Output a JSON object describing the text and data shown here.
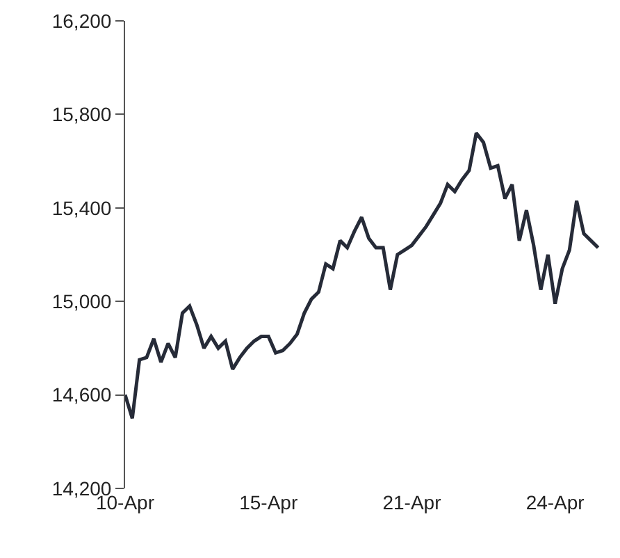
{
  "chart_data": {
    "type": "line",
    "categories": [
      "10-Apr",
      null,
      null,
      null,
      null,
      null,
      null,
      null,
      null,
      null,
      null,
      null,
      null,
      null,
      null,
      null,
      null,
      null,
      null,
      null,
      "15-Apr",
      null,
      null,
      null,
      null,
      null,
      null,
      null,
      null,
      null,
      null,
      null,
      null,
      null,
      null,
      null,
      null,
      null,
      null,
      null,
      "21-Apr",
      null,
      null,
      null,
      null,
      null,
      null,
      null,
      null,
      null,
      null,
      null,
      null,
      null,
      null,
      null,
      null,
      null,
      null,
      null,
      "24-Apr",
      null,
      null,
      null,
      null,
      null,
      null
    ],
    "series": [
      {
        "color": "#262b38",
        "values": [
          14600,
          14500,
          14750,
          14760,
          14840,
          14740,
          14820,
          14760,
          14950,
          14980,
          14900,
          14800,
          14850,
          14800,
          14830,
          14710,
          14760,
          14800,
          14830,
          14850,
          14850,
          14780,
          14790,
          14820,
          14860,
          14950,
          15010,
          15040,
          15160,
          15140,
          15260,
          15230,
          15300,
          15360,
          15270,
          15230,
          15230,
          15050,
          15200,
          15220,
          15240,
          15280,
          15320,
          15370,
          15420,
          15500,
          15470,
          15520,
          15560,
          15720,
          15680,
          15570,
          15580,
          15440,
          15500,
          15260,
          15390,
          15240,
          15050,
          15200,
          14990,
          15140,
          15220,
          15430,
          15290,
          15260,
          15230
        ]
      }
    ],
    "ylim": [
      14200,
      16200
    ],
    "yticks": [
      {
        "value": 14200,
        "label": "14,200"
      },
      {
        "value": 14600,
        "label": "14,600"
      },
      {
        "value": 15000,
        "label": "15,000"
      },
      {
        "value": 15400,
        "label": "15,400"
      },
      {
        "value": 15800,
        "label": "15,800"
      },
      {
        "value": 16200,
        "label": "16,200"
      }
    ],
    "line_style": "solid"
  }
}
